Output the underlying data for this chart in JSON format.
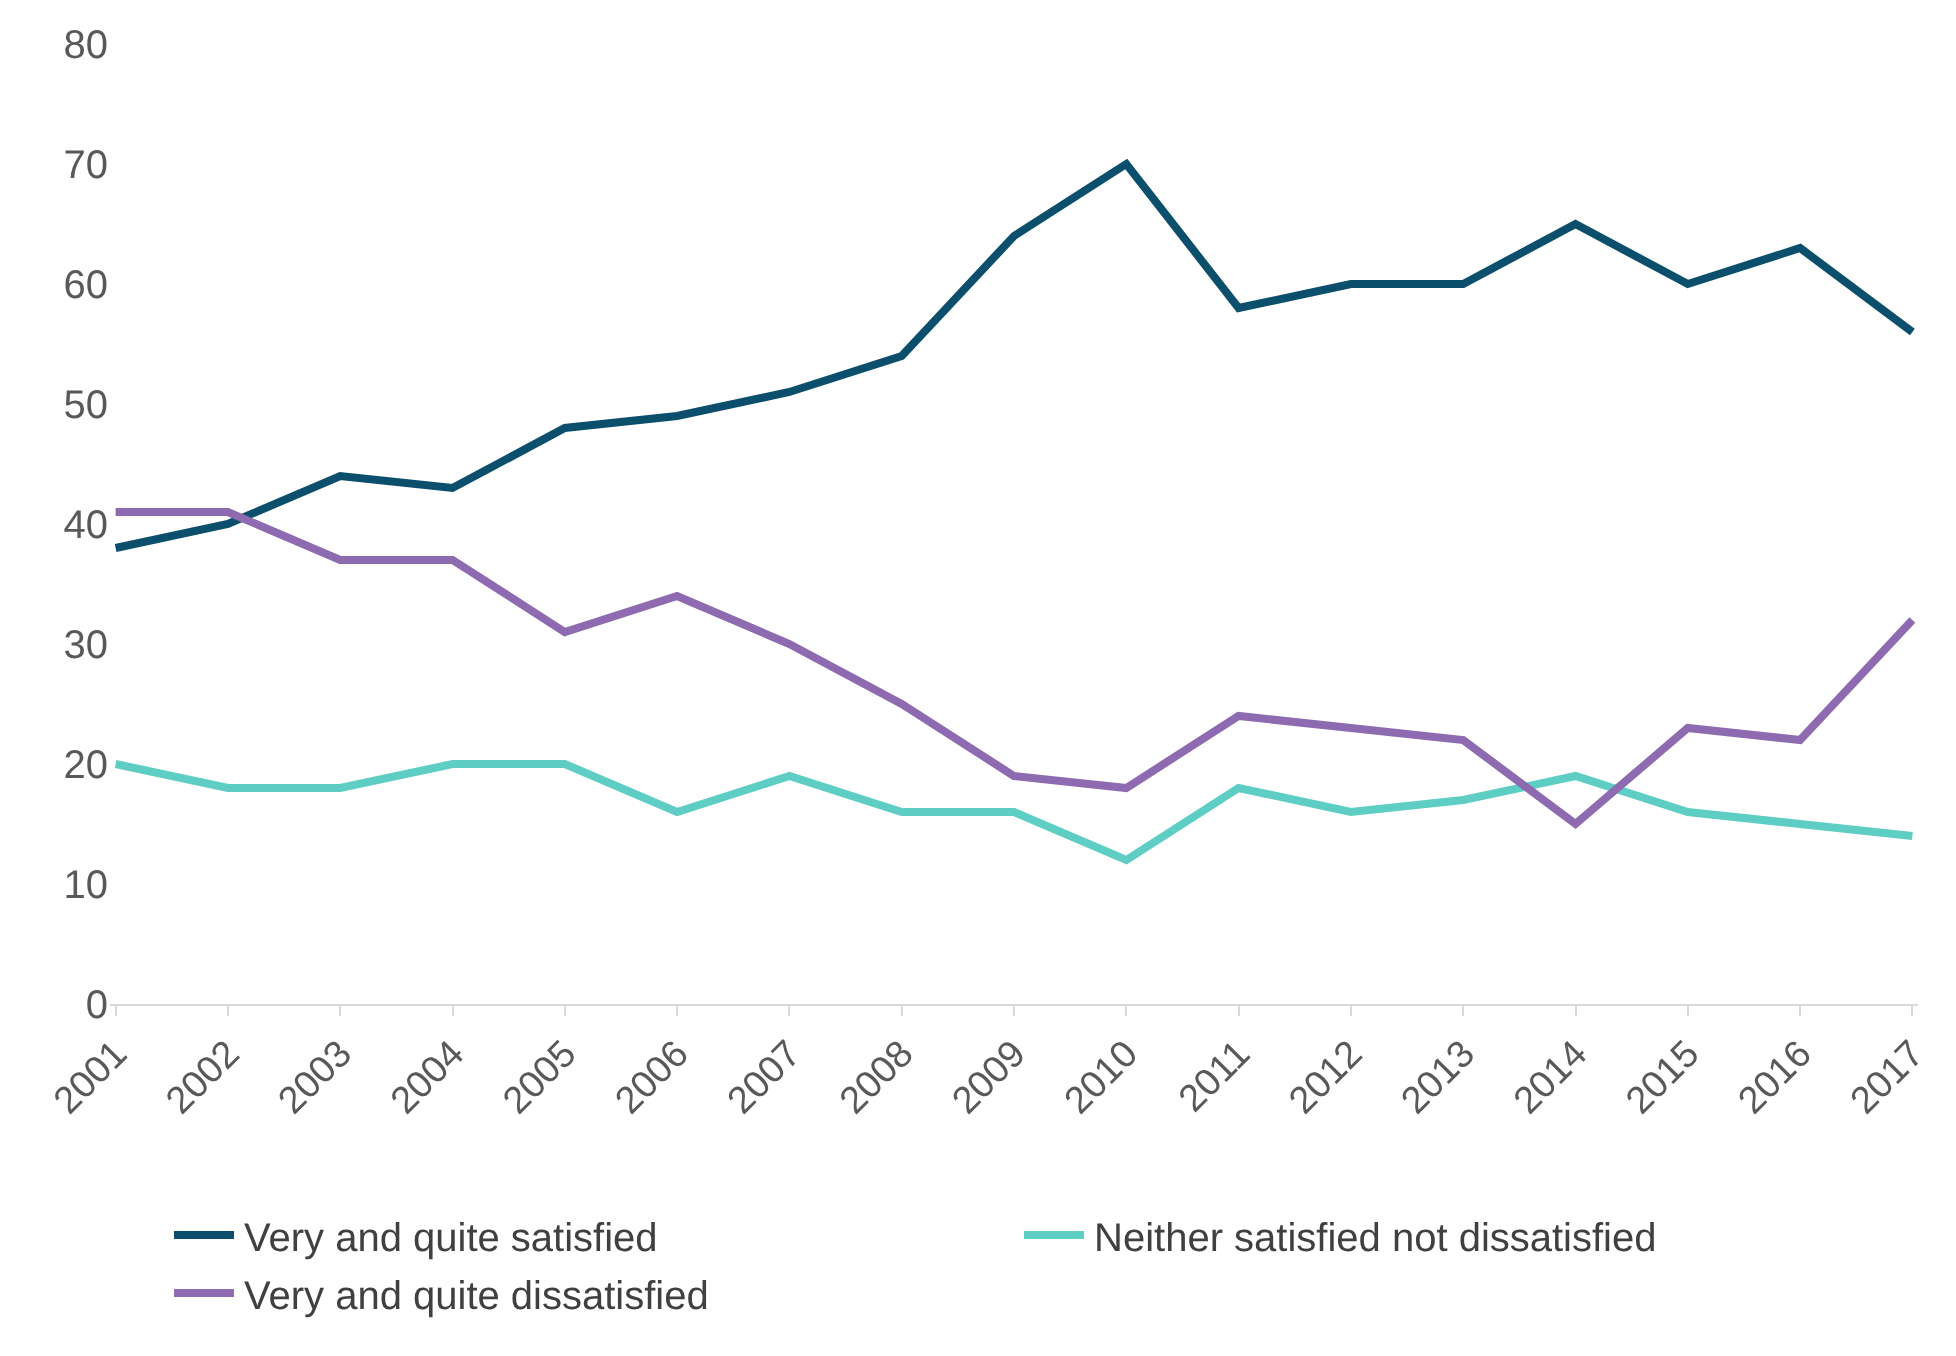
{
  "chart_data": {
    "type": "line",
    "categories": [
      "2001",
      "2002",
      "2003",
      "2004",
      "2005",
      "2006",
      "2007",
      "2008",
      "2009",
      "2010",
      "2011",
      "2012",
      "2013",
      "2014",
      "2015",
      "2016",
      "2017"
    ],
    "series": [
      {
        "name": "Very and quite satisfied",
        "color": "#0b4f6c",
        "values": [
          38,
          40,
          44,
          43,
          48,
          49,
          51,
          54,
          64,
          70,
          58,
          60,
          60,
          65,
          60,
          63,
          56
        ]
      },
      {
        "name": "Neither satisfied not dissatisfied",
        "color": "#5ecdc4",
        "values": [
          20,
          18,
          18,
          20,
          20,
          16,
          19,
          16,
          16,
          12,
          18,
          16,
          17,
          19,
          16,
          15,
          14
        ]
      },
      {
        "name": "Very and quite dissatisfied",
        "color": "#8e6bb0",
        "values": [
          41,
          41,
          37,
          37,
          31,
          34,
          30,
          25,
          19,
          18,
          24,
          23,
          22,
          15,
          23,
          22,
          32
        ]
      }
    ],
    "ylim": [
      0,
      80
    ],
    "yticks": [
      0,
      10,
      20,
      30,
      40,
      50,
      60,
      70,
      80
    ],
    "grid": false,
    "legend": "bottom",
    "marker": "none",
    "line_style": "solid"
  }
}
